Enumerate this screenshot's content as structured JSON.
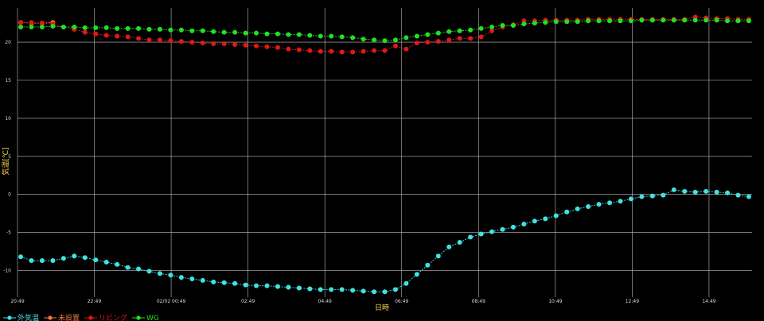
{
  "chart_data": {
    "type": "line",
    "xlabel": "日時",
    "ylabel": "気温[℃]",
    "ylim": [
      -13.5,
      24.5
    ],
    "y_ticks": [
      20,
      15,
      10,
      5,
      0,
      -5,
      -10
    ],
    "x_tick_labels": [
      "20:49",
      "22:49",
      "02/02 00:49",
      "02:49",
      "04:49",
      "06:49",
      "08:49",
      "10:49",
      "12:49",
      "14:49"
    ],
    "grid": true,
    "legend_position": "bottom-left",
    "series": [
      {
        "name": "外気温",
        "color": "#3fe3e3",
        "values": [
          -8.2,
          -8.7,
          -8.7,
          -8.7,
          -8.4,
          -8.1,
          -8.3,
          -8.6,
          -8.9,
          -9.2,
          -9.6,
          -9.8,
          -10.1,
          -10.4,
          -10.6,
          -10.9,
          -11.1,
          -11.3,
          -11.5,
          -11.6,
          -11.7,
          -11.9,
          -12.0,
          -12.0,
          -12.1,
          -12.2,
          -12.3,
          -12.4,
          -12.5,
          -12.5,
          -12.5,
          -12.6,
          -12.7,
          -12.8,
          -12.8,
          -12.5,
          -11.7,
          -10.5,
          -9.3,
          -8.1,
          -6.9,
          -6.3,
          -5.6,
          -5.2,
          -4.9,
          -4.6,
          -4.3,
          -3.9,
          -3.5,
          -3.2,
          -2.8,
          -2.3,
          -1.9,
          -1.6,
          -1.3,
          -1.1,
          -0.9,
          -0.6,
          -0.3,
          -0.2,
          -0.1,
          0.6,
          0.4,
          0.3,
          0.4,
          0.3,
          0.2,
          -0.1,
          -0.3
        ]
      },
      {
        "name": "未設置",
        "color": "#f07840",
        "values": [
          22.6,
          22.5,
          22.5,
          22.6
        ]
      },
      {
        "name": "リビング",
        "color": "#e01818",
        "values": [
          22.6,
          22.6,
          22.5,
          22.4,
          22.0,
          21.7,
          21.3,
          21.1,
          20.9,
          20.8,
          20.7,
          20.5,
          20.3,
          20.3,
          20.2,
          20.1,
          20.0,
          19.9,
          19.8,
          19.8,
          19.7,
          19.6,
          19.5,
          19.4,
          19.3,
          19.1,
          19.0,
          18.9,
          18.8,
          18.8,
          18.7,
          18.7,
          18.8,
          18.9,
          18.9,
          19.5,
          19.1,
          19.9,
          20.0,
          20.1,
          20.3,
          20.5,
          20.5,
          20.7,
          21.5,
          22.0,
          22.3,
          22.8,
          22.8,
          22.9,
          22.9,
          22.9,
          22.9,
          23.0,
          23.0,
          23.0,
          23.0,
          23.0,
          23.0,
          23.0,
          23.0,
          23.0,
          23.0,
          23.3,
          23.2,
          23.1,
          23.1,
          23.0,
          23.0
        ]
      },
      {
        "name": "WG",
        "color": "#22e022",
        "values": [
          22.0,
          22.0,
          22.0,
          22.1,
          22.0,
          22.0,
          21.9,
          21.9,
          21.9,
          21.8,
          21.8,
          21.8,
          21.7,
          21.7,
          21.6,
          21.6,
          21.5,
          21.5,
          21.4,
          21.3,
          21.3,
          21.2,
          21.2,
          21.1,
          21.1,
          21.0,
          21.0,
          20.9,
          20.8,
          20.8,
          20.7,
          20.6,
          20.4,
          20.3,
          20.2,
          20.3,
          20.6,
          20.8,
          21.0,
          21.2,
          21.4,
          21.5,
          21.6,
          21.8,
          22.0,
          22.2,
          22.2,
          22.4,
          22.5,
          22.6,
          22.7,
          22.7,
          22.7,
          22.8,
          22.8,
          22.8,
          22.8,
          22.8,
          22.9,
          22.9,
          22.9,
          22.9,
          22.9,
          22.9,
          22.9,
          22.9,
          22.8,
          22.8,
          22.8
        ]
      }
    ]
  }
}
